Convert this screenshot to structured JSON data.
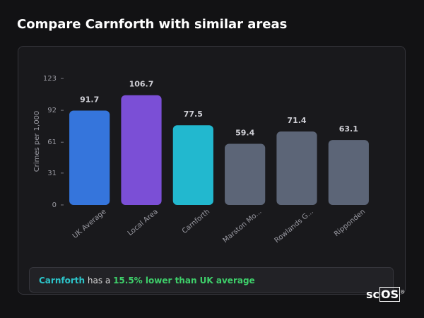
{
  "chart_data": {
    "type": "bar",
    "title": "Compare Carnforth with similar areas",
    "y_label": "Crimes per 1,000",
    "categories": [
      "UK Average",
      "Local Area",
      "Carnforth",
      "Marston Mo...",
      "Rowlands G...",
      "Ripponden"
    ],
    "values": [
      91.7,
      106.7,
      77.5,
      59.4,
      71.4,
      63.1
    ],
    "colors": [
      "#3575dc",
      "#7b4fd6",
      "#22b8cf",
      "#5c6577",
      "#5c6577",
      "#5c6577"
    ],
    "ylim": [
      0,
      123
    ],
    "yticks": [
      0,
      31,
      61,
      92,
      123
    ],
    "grid": false
  },
  "summary": {
    "area": "Carnforth",
    "text": "has a",
    "highlight": "15.5% lower than UK average"
  },
  "brand": {
    "prefix": "sc",
    "boxed": "OS",
    "mark": "®"
  }
}
